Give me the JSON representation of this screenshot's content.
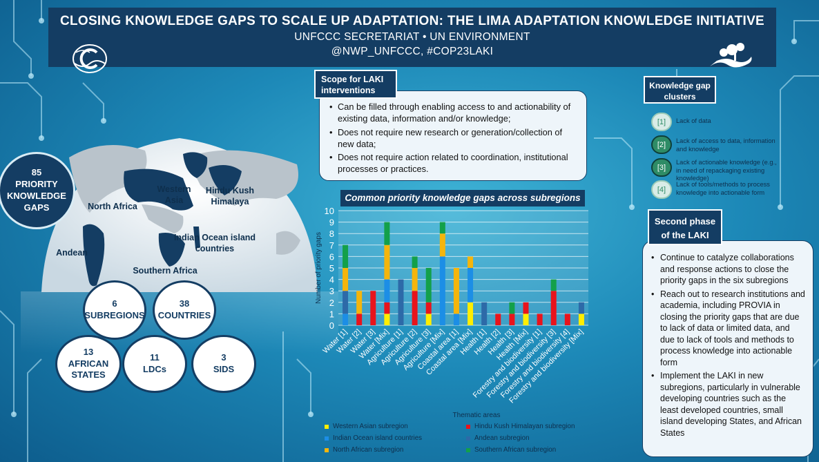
{
  "header": {
    "title": "CLOSING KNOWLEDGE GAPS TO SCALE UP ADAPTATION: THE LIMA ADAPTATION KNOWLEDGE INITIATIVE",
    "subtitle": "UNFCCC SECRETARIAT • UN ENVIRONMENT",
    "hashtags": "@NWP_UNFCCC, #COP23LAKI",
    "logo_left_icon": "unfccc-logo-icon",
    "logo_right_icon": "un-environment-logo-icon"
  },
  "map": {
    "regions": {
      "western_asia": "Western Asia",
      "hindu_kush": "Hindu Kush Himalaya",
      "north_africa": "North Africa",
      "andean": "Andean",
      "indian_ocean": "Indian Ocean island countries",
      "southern_africa": "Southern Africa"
    }
  },
  "stats": {
    "priority_gaps": {
      "value": "85",
      "label": "PRIORITY KNOWLEDGE GAPS"
    },
    "subregions": {
      "value": "6",
      "label": "SUBREGIONS"
    },
    "countries": {
      "value": "38",
      "label": "COUNTRIES"
    },
    "african_states": {
      "value": "13",
      "label": "AFRICAN STATES"
    },
    "ldcs": {
      "value": "11",
      "label": "LDCs"
    },
    "sids": {
      "value": "3",
      "label": "SIDS"
    }
  },
  "scope": {
    "title": "Scope for LAKI interventions",
    "bullets": [
      "Can be filled through enabling access to and actionability of existing data, information and/or knowledge;",
      "Does not require new research or generation/collection of new data;",
      "Does not require action related to coordination, institutional processes or practices."
    ]
  },
  "clusters": {
    "title": "Knowledge gap clusters",
    "items": [
      {
        "badge": "[1]",
        "text": "Lack of data"
      },
      {
        "badge": "[2]",
        "text": "Lack of access to data, information and knowledge"
      },
      {
        "badge": "[3]",
        "text": "Lack of actionable knowledge (e.g., in need of repackaging existing knowledge)"
      },
      {
        "badge": "[4]",
        "text": "Lack of tools/methods to process knowledge into actionable form"
      }
    ]
  },
  "phase": {
    "title": "Second phase of the LAKI",
    "bullets": [
      "Continue to catalyze collaborations and response actions to close the priority gaps in the six subregions",
      "Reach out to research institutions and academia, including PROVIA in closing the priority gaps that are due to lack of data or limited data, and due to lack of tools and methods to process knowledge into actionable form",
      "Implement the LAKI in new subregions, particularly in vulnerable developing countries such as the least developed countries, small island developing States, and African States"
    ]
  },
  "chart_data": {
    "type": "bar",
    "stacked": true,
    "title": "Common priority knowledge gaps across subregions",
    "xlabel": "Thematic areas",
    "ylabel": "Number of priority gaps",
    "ylim": [
      0,
      10
    ],
    "yticks": [
      0,
      1,
      2,
      3,
      4,
      5,
      6,
      7,
      8,
      9,
      10
    ],
    "grid": true,
    "legend_position": "bottom",
    "categories": [
      "Water [1]",
      "Water [2]",
      "Water [3]",
      "Water [Mix]",
      "Agriculture [1]",
      "Agriculture [2]",
      "Agriculture [3]",
      "Agriculture [Mix]",
      "Coastal area [1]",
      "Coastal area [Mix]",
      "Health [1]",
      "Health [2]",
      "Health [3]",
      "Health [Mix]",
      "Forestry and biodiversity [1]",
      "Forestry and biodiversity [3]",
      "Forestry and biodiversity [4]",
      "Forestry and biodiversity [Mix]"
    ],
    "series": [
      {
        "name": "Western Asian subregion",
        "color": "#ffee00",
        "values": [
          0,
          0,
          0,
          1,
          0,
          0,
          1,
          0,
          0,
          2,
          0,
          0,
          0,
          1,
          0,
          0,
          0,
          1
        ]
      },
      {
        "name": "Hindu Kush Himalayan subregion",
        "color": "#e8141c",
        "values": [
          0,
          1,
          3,
          1,
          0,
          3,
          1,
          0,
          0,
          0,
          0,
          1,
          1,
          1,
          1,
          3,
          1,
          0
        ]
      },
      {
        "name": "Indian Ocean island countries",
        "color": "#1c8ee6",
        "values": [
          1,
          0,
          0,
          2,
          0,
          0,
          0,
          6,
          1,
          3,
          0,
          0,
          0,
          0,
          0,
          0,
          0,
          0
        ]
      },
      {
        "name": "Andean subregion",
        "color": "#2d6aa8",
        "values": [
          2,
          0,
          0,
          0,
          4,
          0,
          0,
          0,
          0,
          0,
          2,
          0,
          0,
          0,
          0,
          0,
          0,
          1
        ]
      },
      {
        "name": "North African subregion",
        "color": "#f5b50c",
        "values": [
          2,
          2,
          0,
          3,
          0,
          2,
          0,
          2,
          4,
          1,
          0,
          0,
          0,
          0,
          0,
          0,
          0,
          0
        ]
      },
      {
        "name": "Southern African subregion",
        "color": "#13a04a",
        "values": [
          2,
          0,
          0,
          2,
          0,
          1,
          3,
          1,
          0,
          0,
          0,
          0,
          1,
          0,
          0,
          1,
          0,
          0
        ]
      }
    ]
  }
}
